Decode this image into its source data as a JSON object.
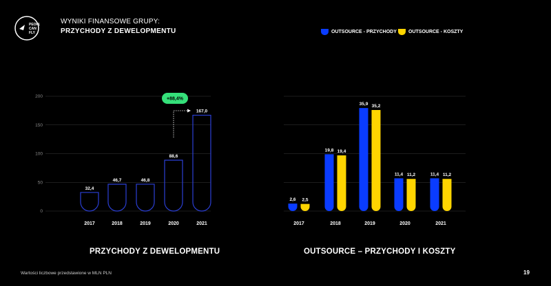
{
  "header": {
    "logo_text": "PEOPLE CAN FLY",
    "title": "WYNIKI FINANSOWE GRUPY:",
    "subtitle": "PRZYCHODY Z DEWELOPMENTU"
  },
  "legend": {
    "items": [
      {
        "label": "OUTSOURCE - PRZYCHODY",
        "color": "#0a3cff"
      },
      {
        "label": "OUTSOURCE - KOSZTY",
        "color": "#ffd500"
      }
    ]
  },
  "colors": {
    "background": "#000000",
    "outline_bar": "#2b3fd6",
    "blue": "#0a3cff",
    "yellow": "#ffd500",
    "badge": "#35e07a",
    "grid": "#3a3a3a"
  },
  "chart_data": [
    {
      "type": "bar",
      "categories": [
        "2017",
        "2018",
        "2019",
        "2020",
        "2021"
      ],
      "values": [
        32.4,
        46.7,
        46.8,
        88.6,
        167.0
      ],
      "value_labels": [
        "32,4",
        "46,7",
        "46,8",
        "88,6",
        "167,0"
      ],
      "ylim": [
        0,
        200
      ],
      "yticks": [
        "0",
        "50",
        "100",
        "150",
        "200"
      ],
      "grid": true,
      "title": "PRZYCHODY Z DEWELOPMENTU",
      "annotation": "+88,4%"
    },
    {
      "type": "bar",
      "categories": [
        "2017",
        "2018",
        "2019",
        "2020",
        "2021"
      ],
      "series": [
        {
          "name": "OUTSOURCE - PRZYCHODY",
          "values": [
            2.6,
            19.8,
            35.9,
            11.4,
            11.4
          ],
          "labels": [
            "2,6",
            "19,8",
            "35,9",
            "11,4",
            "11,4"
          ]
        },
        {
          "name": "OUTSOURCE - KOSZTY",
          "values": [
            2.5,
            19.4,
            35.2,
            11.2,
            11.2
          ],
          "labels": [
            "2,5",
            "19,4",
            "35,2",
            "11,2",
            "11,2"
          ]
        }
      ],
      "ylim": [
        0,
        40
      ],
      "grid": true,
      "legend": "top-right",
      "title": "OUTSOURCE – PRZYCHODY I KOSZTY"
    }
  ],
  "footnote": "Wartości liczbowe przedstawione w MLN PLN",
  "page_number": "19"
}
